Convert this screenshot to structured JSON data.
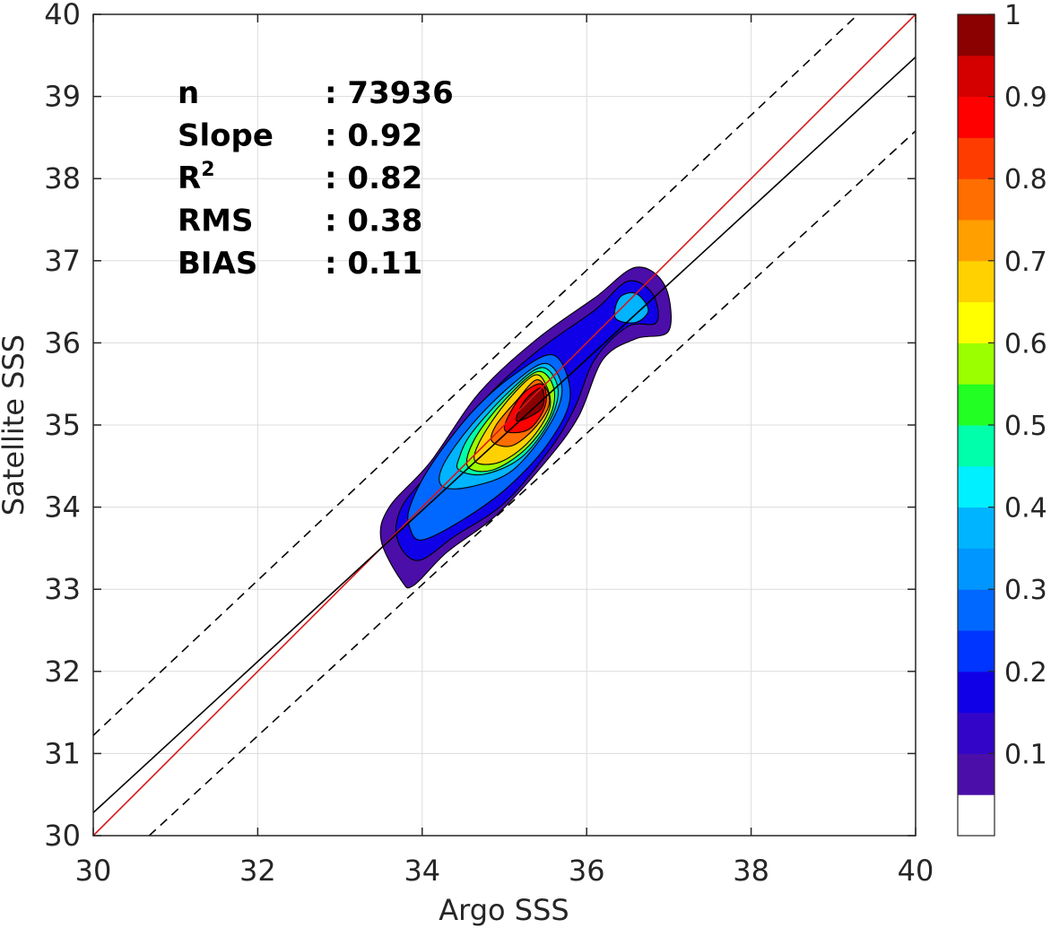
{
  "chart_data": {
    "type": "contour",
    "xlabel": "Argo SSS",
    "ylabel": "Satellite SSS",
    "xlim": [
      30,
      40
    ],
    "ylim": [
      30,
      40
    ],
    "xticks": [
      30,
      32,
      34,
      36,
      38,
      40
    ],
    "yticks": [
      30,
      31,
      32,
      33,
      34,
      35,
      36,
      37,
      38,
      39,
      40
    ],
    "grid": true,
    "statistics": [
      {
        "label": "n",
        "value": ": 73936"
      },
      {
        "label": "Slope",
        "value": ": 0.92"
      },
      {
        "label": "R",
        "sup": "2",
        "value": ": 0.82"
      },
      {
        "label": "RMS",
        "value": ": 0.38"
      },
      {
        "label": "BIAS",
        "value": ": 0.11"
      }
    ],
    "lines": [
      {
        "kind": "one-to-one",
        "color": "#d7191c",
        "points": [
          [
            30,
            30
          ],
          [
            40,
            40
          ]
        ]
      },
      {
        "kind": "regression",
        "color": "#000000",
        "points": [
          [
            30,
            30.28
          ],
          [
            40,
            39.48
          ]
        ]
      },
      {
        "kind": "upper-bound",
        "color": "#000000",
        "dashed": true,
        "points": [
          [
            30,
            31.22
          ],
          [
            39.3,
            40
          ]
        ]
      },
      {
        "kind": "lower-bound",
        "color": "#000000",
        "dashed": true,
        "points": [
          [
            30.68,
            30
          ],
          [
            40,
            38.58
          ]
        ]
      }
    ],
    "density_peak": {
      "x": 35.35,
      "y": 35.2
    },
    "contour_levels": [
      {
        "level": 0.05,
        "ring": [
          [
            33.9,
            33.05
          ],
          [
            34.3,
            33.45
          ],
          [
            34.9,
            33.9
          ],
          [
            35.5,
            34.55
          ],
          [
            35.9,
            35.1
          ],
          [
            36.2,
            35.8
          ],
          [
            36.6,
            36.05
          ],
          [
            37.0,
            36.15
          ],
          [
            36.95,
            36.7
          ],
          [
            36.6,
            36.92
          ],
          [
            36.1,
            36.55
          ],
          [
            35.4,
            36.05
          ],
          [
            34.7,
            35.4
          ],
          [
            34.1,
            34.55
          ],
          [
            33.6,
            34.0
          ],
          [
            33.5,
            33.6
          ],
          [
            33.75,
            33.1
          ]
        ]
      },
      {
        "level": 0.15,
        "ring": [
          [
            33.95,
            33.35
          ],
          [
            34.4,
            33.65
          ],
          [
            35.0,
            34.05
          ],
          [
            35.55,
            34.7
          ],
          [
            35.85,
            35.2
          ],
          [
            36.1,
            35.8
          ],
          [
            36.5,
            36.2
          ],
          [
            36.85,
            36.25
          ],
          [
            36.8,
            36.6
          ],
          [
            36.5,
            36.75
          ],
          [
            36.1,
            36.4
          ],
          [
            35.4,
            35.9
          ],
          [
            34.75,
            35.3
          ],
          [
            34.15,
            34.5
          ],
          [
            33.75,
            34.0
          ],
          [
            33.7,
            33.6
          ]
        ]
      },
      {
        "level": 0.25,
        "ring": [
          [
            34.0,
            33.6
          ],
          [
            34.5,
            33.85
          ],
          [
            35.05,
            34.25
          ],
          [
            35.55,
            34.8
          ],
          [
            35.8,
            35.35
          ],
          [
            35.6,
            35.85
          ],
          [
            35.1,
            35.6
          ],
          [
            34.6,
            35.15
          ],
          [
            34.1,
            34.5
          ],
          [
            33.85,
            34.0
          ],
          [
            33.85,
            33.75
          ]
        ]
      },
      {
        "level": 0.35,
        "ring": [
          [
            36.35,
            36.3
          ],
          [
            36.6,
            36.25
          ],
          [
            36.75,
            36.4
          ],
          [
            36.6,
            36.6
          ],
          [
            36.4,
            36.55
          ]
        ]
      },
      {
        "level": 0.35,
        "ring": [
          [
            34.25,
            34.25
          ],
          [
            34.6,
            34.25
          ],
          [
            35.1,
            34.45
          ],
          [
            35.55,
            35.0
          ],
          [
            35.7,
            35.45
          ],
          [
            35.5,
            35.75
          ],
          [
            35.1,
            35.5
          ],
          [
            34.6,
            35.0
          ],
          [
            34.25,
            34.5
          ]
        ]
      },
      {
        "level": 0.45,
        "ring": [
          [
            34.45,
            34.45
          ],
          [
            34.75,
            34.4
          ],
          [
            35.2,
            34.6
          ],
          [
            35.55,
            35.05
          ],
          [
            35.65,
            35.45
          ],
          [
            35.45,
            35.7
          ],
          [
            35.05,
            35.4
          ],
          [
            34.6,
            34.9
          ],
          [
            34.45,
            34.6
          ]
        ]
      },
      {
        "level": 0.55,
        "ring": [
          [
            34.55,
            34.5
          ],
          [
            34.85,
            34.45
          ],
          [
            35.25,
            34.7
          ],
          [
            35.55,
            35.1
          ],
          [
            35.6,
            35.45
          ],
          [
            35.4,
            35.65
          ],
          [
            35.0,
            35.3
          ],
          [
            34.65,
            34.85
          ]
        ]
      },
      {
        "level": 0.65,
        "ring": [
          [
            34.65,
            34.55
          ],
          [
            34.95,
            34.55
          ],
          [
            35.3,
            34.8
          ],
          [
            35.55,
            35.2
          ],
          [
            35.5,
            35.5
          ],
          [
            35.35,
            35.6
          ],
          [
            35.0,
            35.25
          ],
          [
            34.7,
            34.8
          ]
        ]
      },
      {
        "level": 0.75,
        "ring": [
          [
            34.85,
            34.8
          ],
          [
            35.1,
            34.75
          ],
          [
            35.4,
            35.0
          ],
          [
            35.55,
            35.3
          ],
          [
            35.4,
            35.55
          ],
          [
            35.15,
            35.3
          ],
          [
            34.9,
            35.0
          ]
        ]
      },
      {
        "level": 0.85,
        "ring": [
          [
            35.0,
            34.95
          ],
          [
            35.3,
            34.95
          ],
          [
            35.5,
            35.25
          ],
          [
            35.45,
            35.5
          ],
          [
            35.2,
            35.35
          ]
        ]
      },
      {
        "level": 0.95,
        "ring": [
          [
            35.15,
            35.05
          ],
          [
            35.45,
            35.2
          ],
          [
            35.45,
            35.45
          ],
          [
            35.25,
            35.3
          ]
        ]
      }
    ],
    "colorbar": {
      "range": [
        0,
        1
      ],
      "ticks": [
        "1",
        "0.9",
        "0.8",
        "0.7",
        "0.6",
        "0.5",
        "0.4",
        "0.3",
        "0.2",
        "0.1"
      ],
      "colors": [
        "#ffffff",
        "#4b0ea9",
        "#3305c8",
        "#1000e8",
        "#0034ff",
        "#0068ff",
        "#0096ff",
        "#00b4ff",
        "#00f0ff",
        "#00ffaa",
        "#22ff22",
        "#9cff00",
        "#ffff00",
        "#ffd100",
        "#ff9f00",
        "#ff6e00",
        "#ff3c00",
        "#ff0000",
        "#d40000",
        "#8b0000"
      ]
    }
  }
}
